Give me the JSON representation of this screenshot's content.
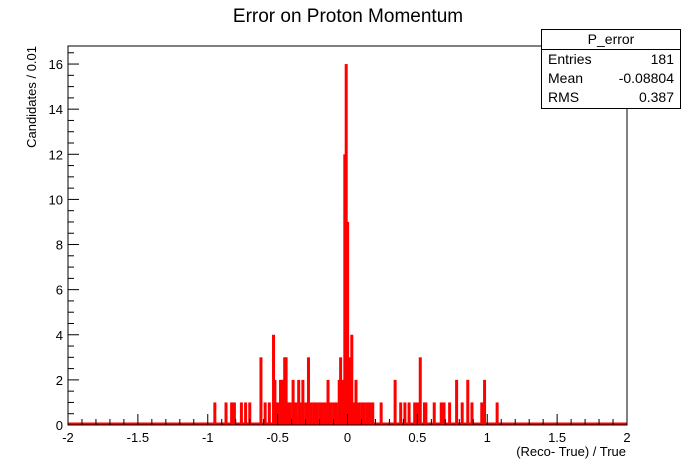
{
  "title": "Error on Proton Momentum",
  "stats_box": {
    "name": "P_error",
    "rows": [
      {
        "label": "Entries",
        "value": "181"
      },
      {
        "label": "Mean",
        "value": "-0.08804"
      },
      {
        "label": "RMS",
        "value": "0.387"
      }
    ]
  },
  "colors": {
    "histogram": "#ff0000",
    "axes": "#000000",
    "background": "#ffffff"
  },
  "chart_data": {
    "type": "bar",
    "title": "Error on Proton Momentum",
    "xlabel": "(Reco- True) / True",
    "ylabel": "Candidates / 0.01",
    "xlim": [
      -2,
      2
    ],
    "ylim": [
      0,
      16.8
    ],
    "bin_width": 0.01,
    "x_ticks": [
      -2,
      -1.5,
      -1,
      -0.5,
      0,
      0.5,
      1,
      1.5,
      2
    ],
    "x_tick_labels": [
      "-2",
      "-1.5",
      "-1",
      "-0.5",
      "0",
      "0.5",
      "1",
      "1.5",
      "2"
    ],
    "y_ticks": [
      0,
      2,
      4,
      6,
      8,
      10,
      12,
      14,
      16
    ],
    "y_tick_labels": [
      "0",
      "2",
      "4",
      "6",
      "8",
      "10",
      "12",
      "14",
      "16"
    ],
    "grid": false,
    "legend": "stats box top-right",
    "series": [
      {
        "bins_x": [
          -0.96,
          -0.88,
          -0.84,
          -0.82,
          -0.77,
          -0.74,
          -0.71,
          -0.63,
          -0.6,
          -0.57,
          -0.54,
          -0.53,
          -0.52,
          -0.51,
          -0.49,
          -0.48,
          -0.47,
          -0.46,
          -0.45,
          -0.44,
          -0.43,
          -0.42,
          -0.4,
          -0.38,
          -0.36,
          -0.34,
          -0.33,
          -0.31,
          -0.29,
          -0.27,
          -0.25,
          -0.23,
          -0.21,
          -0.19,
          -0.17,
          -0.15,
          -0.13,
          -0.11,
          -0.09,
          -0.07,
          -0.06,
          -0.05,
          -0.04,
          -0.03,
          -0.02,
          -0.01,
          0.0,
          0.01,
          0.02,
          0.03,
          0.05,
          0.07,
          0.09,
          0.11,
          0.13,
          0.15,
          0.17,
          0.23,
          0.33,
          0.37,
          0.4,
          0.43,
          0.47,
          0.49,
          0.51,
          0.54,
          0.55,
          0.61,
          0.66,
          0.68,
          0.72,
          0.77,
          0.81,
          0.85,
          0.88,
          0.95,
          0.97,
          1.06
        ],
        "values": [
          1,
          1,
          1,
          1,
          1,
          1,
          1,
          3,
          1,
          1,
          4,
          2,
          1,
          1,
          2,
          2,
          2,
          3,
          3,
          1,
          1,
          1,
          2,
          1,
          2,
          1,
          2,
          1,
          3,
          1,
          1,
          1,
          1,
          1,
          1,
          2,
          1,
          1,
          1,
          2,
          3,
          1,
          2,
          12,
          16,
          9,
          2,
          3,
          4,
          1,
          2,
          1,
          1,
          1,
          1,
          1,
          1,
          1,
          2,
          1,
          1,
          1,
          1,
          1,
          3,
          1,
          1,
          1,
          1,
          1,
          1,
          2,
          1,
          2,
          1,
          1,
          2,
          1
        ]
      }
    ]
  }
}
